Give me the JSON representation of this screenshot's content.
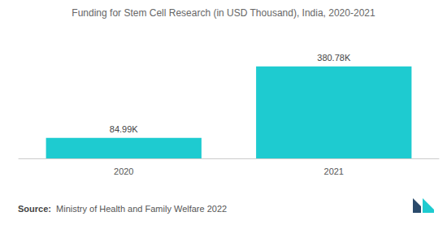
{
  "chart_data": {
    "type": "bar",
    "title": "Funding for Stem Cell Research (in USD Thousand), India, 2020-2021",
    "categories": [
      "2020",
      "2021"
    ],
    "values": [
      84.99,
      380.78
    ],
    "value_labels": [
      "84.99K",
      "380.78K"
    ],
    "color": "#1ecbd0",
    "ylim": [
      0,
      400
    ],
    "grid": false,
    "data_labels": true,
    "tick_labels": "x",
    "source_label": "Source:",
    "source": "Ministry of Health and Family Welfare 2022"
  }
}
